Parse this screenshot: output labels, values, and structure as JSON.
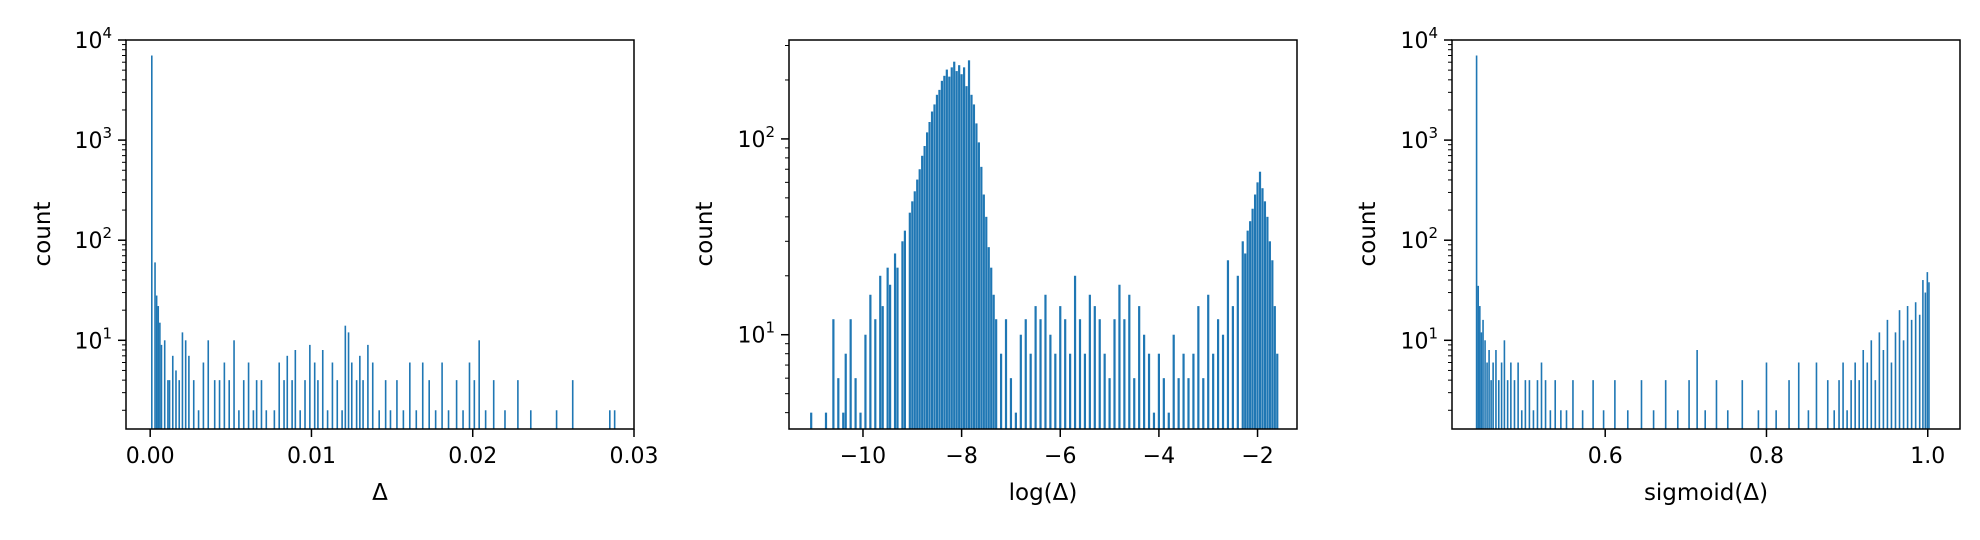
{
  "chart_data": [
    {
      "type": "bar",
      "xlabel": "Δ",
      "ylabel": "count",
      "y_scale": "log",
      "xlim": [
        -0.0015,
        0.03
      ],
      "ylim": [
        1.3,
        10000
      ],
      "xticks": [
        0.0,
        0.01,
        0.02,
        0.03
      ],
      "xtick_labels": [
        "0.00",
        "0.01",
        "0.02",
        "0.03"
      ],
      "yticks": [
        10,
        100,
        1000,
        10000
      ],
      "ytick_labels": [
        {
          "base": "10",
          "exp": "1"
        },
        {
          "base": "10",
          "exp": "2"
        },
        {
          "base": "10",
          "exp": "3"
        },
        {
          "base": "10",
          "exp": "4"
        }
      ],
      "grid": false,
      "bar_color": "#1f77b4",
      "bins": [
        [
          0.0001,
          7000
        ],
        [
          0.0003,
          60
        ],
        [
          0.0004,
          28
        ],
        [
          0.0005,
          22
        ],
        [
          0.0006,
          15
        ],
        [
          0.0007,
          9
        ],
        [
          0.0009,
          10
        ],
        [
          0.0011,
          4
        ],
        [
          0.0012,
          4
        ],
        [
          0.0014,
          7
        ],
        [
          0.0016,
          5
        ],
        [
          0.0018,
          4
        ],
        [
          0.002,
          12
        ],
        [
          0.0022,
          10
        ],
        [
          0.0024,
          7
        ],
        [
          0.0027,
          4
        ],
        [
          0.003,
          2
        ],
        [
          0.0033,
          6
        ],
        [
          0.0036,
          10
        ],
        [
          0.004,
          4
        ],
        [
          0.0043,
          4
        ],
        [
          0.0046,
          6
        ],
        [
          0.0049,
          4
        ],
        [
          0.0052,
          10
        ],
        [
          0.0055,
          2
        ],
        [
          0.0058,
          4
        ],
        [
          0.0061,
          6
        ],
        [
          0.0064,
          2
        ],
        [
          0.0066,
          4
        ],
        [
          0.0069,
          4
        ],
        [
          0.0072,
          2
        ],
        [
          0.0077,
          2
        ],
        [
          0.008,
          6
        ],
        [
          0.0083,
          4
        ],
        [
          0.0085,
          7
        ],
        [
          0.0088,
          4
        ],
        [
          0.009,
          8
        ],
        [
          0.0093,
          2
        ],
        [
          0.0096,
          4
        ],
        [
          0.0099,
          9
        ],
        [
          0.0102,
          6
        ],
        [
          0.0104,
          4
        ],
        [
          0.0107,
          8
        ],
        [
          0.011,
          2
        ],
        [
          0.0113,
          6
        ],
        [
          0.0116,
          4
        ],
        [
          0.0119,
          2
        ],
        [
          0.0121,
          14
        ],
        [
          0.0123,
          12
        ],
        [
          0.0125,
          6
        ],
        [
          0.0128,
          4
        ],
        [
          0.013,
          7
        ],
        [
          0.0132,
          4
        ],
        [
          0.0135,
          9
        ],
        [
          0.0138,
          6
        ],
        [
          0.0142,
          2
        ],
        [
          0.0146,
          4
        ],
        [
          0.0149,
          2
        ],
        [
          0.0153,
          4
        ],
        [
          0.0157,
          2
        ],
        [
          0.0161,
          6
        ],
        [
          0.0165,
          2
        ],
        [
          0.0169,
          6
        ],
        [
          0.0173,
          4
        ],
        [
          0.0177,
          2
        ],
        [
          0.0181,
          6
        ],
        [
          0.0185,
          2
        ],
        [
          0.019,
          4
        ],
        [
          0.0194,
          2
        ],
        [
          0.0198,
          6
        ],
        [
          0.0201,
          4
        ],
        [
          0.0204,
          10
        ],
        [
          0.0208,
          2
        ],
        [
          0.0213,
          4
        ],
        [
          0.022,
          2
        ],
        [
          0.0228,
          4
        ],
        [
          0.0236,
          2
        ],
        [
          0.0252,
          2
        ],
        [
          0.0262,
          4
        ],
        [
          0.0285,
          2
        ],
        [
          0.0288,
          2
        ]
      ]
    },
    {
      "type": "bar",
      "xlabel": "log(Δ)",
      "ylabel": "count",
      "y_scale": "log",
      "xlim": [
        -11.5,
        -1.2
      ],
      "ylim": [
        3.3,
        320
      ],
      "xticks": [
        -10,
        -8,
        -6,
        -4,
        -2
      ],
      "xtick_labels": [
        "−10",
        "−8",
        "−6",
        "−4",
        "−2"
      ],
      "yticks": [
        10,
        100
      ],
      "ytick_labels": [
        {
          "base": "10",
          "exp": "1"
        },
        {
          "base": "10",
          "exp": "2"
        }
      ],
      "grid": false,
      "bar_color": "#1f77b4",
      "bins": [
        [
          -11.05,
          4
        ],
        [
          -10.75,
          4
        ],
        [
          -10.6,
          12
        ],
        [
          -10.5,
          6
        ],
        [
          -10.4,
          4
        ],
        [
          -10.35,
          8
        ],
        [
          -10.25,
          12
        ],
        [
          -10.15,
          6
        ],
        [
          -10.05,
          4
        ],
        [
          -9.95,
          10
        ],
        [
          -9.85,
          16
        ],
        [
          -9.75,
          12
        ],
        [
          -9.65,
          20
        ],
        [
          -9.6,
          14
        ],
        [
          -9.5,
          22
        ],
        [
          -9.45,
          18
        ],
        [
          -9.35,
          26
        ],
        [
          -9.3,
          22
        ],
        [
          -9.2,
          30
        ],
        [
          -9.15,
          34
        ],
        [
          -9.05,
          42
        ],
        [
          -9.0,
          48
        ],
        [
          -8.95,
          54
        ],
        [
          -8.9,
          62
        ],
        [
          -8.85,
          70
        ],
        [
          -8.8,
          82
        ],
        [
          -8.75,
          92
        ],
        [
          -8.7,
          108
        ],
        [
          -8.65,
          122
        ],
        [
          -8.6,
          138
        ],
        [
          -8.55,
          150
        ],
        [
          -8.5,
          168
        ],
        [
          -8.45,
          178
        ],
        [
          -8.4,
          198
        ],
        [
          -8.35,
          210
        ],
        [
          -8.3,
          226
        ],
        [
          -8.25,
          208
        ],
        [
          -8.2,
          232
        ],
        [
          -8.15,
          248
        ],
        [
          -8.1,
          222
        ],
        [
          -8.05,
          238
        ],
        [
          -8.0,
          214
        ],
        [
          -7.95,
          232
        ],
        [
          -7.9,
          186
        ],
        [
          -7.85,
          252
        ],
        [
          -7.8,
          168
        ],
        [
          -7.75,
          150
        ],
        [
          -7.7,
          120
        ],
        [
          -7.65,
          96
        ],
        [
          -7.6,
          72
        ],
        [
          -7.55,
          52
        ],
        [
          -7.5,
          40
        ],
        [
          -7.45,
          28
        ],
        [
          -7.4,
          22
        ],
        [
          -7.35,
          16
        ],
        [
          -7.3,
          12
        ],
        [
          -7.2,
          8
        ],
        [
          -7.1,
          12
        ],
        [
          -7.0,
          6
        ],
        [
          -6.9,
          4
        ],
        [
          -6.8,
          10
        ],
        [
          -6.7,
          12
        ],
        [
          -6.6,
          8
        ],
        [
          -6.5,
          14
        ],
        [
          -6.4,
          12
        ],
        [
          -6.3,
          16
        ],
        [
          -6.2,
          10
        ],
        [
          -6.1,
          8
        ],
        [
          -6.0,
          14
        ],
        [
          -5.9,
          12
        ],
        [
          -5.8,
          8
        ],
        [
          -5.7,
          20
        ],
        [
          -5.6,
          12
        ],
        [
          -5.5,
          8
        ],
        [
          -5.4,
          16
        ],
        [
          -5.3,
          14
        ],
        [
          -5.2,
          12
        ],
        [
          -5.1,
          8
        ],
        [
          -5.0,
          6
        ],
        [
          -4.9,
          12
        ],
        [
          -4.8,
          18
        ],
        [
          -4.7,
          12
        ],
        [
          -4.6,
          16
        ],
        [
          -4.5,
          6
        ],
        [
          -4.4,
          14
        ],
        [
          -4.3,
          10
        ],
        [
          -4.2,
          8
        ],
        [
          -4.1,
          4
        ],
        [
          -4.0,
          8
        ],
        [
          -3.9,
          6
        ],
        [
          -3.8,
          4
        ],
        [
          -3.7,
          10
        ],
        [
          -3.6,
          6
        ],
        [
          -3.5,
          8
        ],
        [
          -3.4,
          6
        ],
        [
          -3.3,
          8
        ],
        [
          -3.2,
          14
        ],
        [
          -3.1,
          6
        ],
        [
          -3.0,
          16
        ],
        [
          -2.9,
          8
        ],
        [
          -2.8,
          12
        ],
        [
          -2.7,
          10
        ],
        [
          -2.6,
          24
        ],
        [
          -2.5,
          14
        ],
        [
          -2.4,
          20
        ],
        [
          -2.3,
          30
        ],
        [
          -2.25,
          26
        ],
        [
          -2.2,
          34
        ],
        [
          -2.15,
          38
        ],
        [
          -2.1,
          44
        ],
        [
          -2.05,
          52
        ],
        [
          -2.0,
          60
        ],
        [
          -1.95,
          68
        ],
        [
          -1.9,
          56
        ],
        [
          -1.85,
          48
        ],
        [
          -1.8,
          40
        ],
        [
          -1.75,
          30
        ],
        [
          -1.7,
          24
        ],
        [
          -1.65,
          14
        ],
        [
          -1.6,
          8
        ]
      ]
    },
    {
      "type": "bar",
      "xlabel": "sigmoid(Δ)",
      "ylabel": "count",
      "y_scale": "log",
      "xlim": [
        0.41,
        1.04
      ],
      "ylim": [
        1.3,
        10000
      ],
      "xticks": [
        0.6,
        0.8,
        1.0
      ],
      "xtick_labels": [
        "0.6",
        "0.8",
        "1.0"
      ],
      "yticks": [
        10,
        100,
        1000,
        10000
      ],
      "ytick_labels": [
        {
          "base": "10",
          "exp": "1"
        },
        {
          "base": "10",
          "exp": "2"
        },
        {
          "base": "10",
          "exp": "3"
        },
        {
          "base": "10",
          "exp": "4"
        }
      ],
      "grid": false,
      "bar_color": "#1f77b4",
      "bins": [
        [
          0.4405,
          7000
        ],
        [
          0.4425,
          35
        ],
        [
          0.4445,
          22
        ],
        [
          0.4465,
          12
        ],
        [
          0.4485,
          16
        ],
        [
          0.451,
          10
        ],
        [
          0.4535,
          6
        ],
        [
          0.456,
          8
        ],
        [
          0.4585,
          4
        ],
        [
          0.461,
          6
        ],
        [
          0.4645,
          8
        ],
        [
          0.468,
          4
        ],
        [
          0.4715,
          6
        ],
        [
          0.475,
          10
        ],
        [
          0.479,
          4
        ],
        [
          0.483,
          6
        ],
        [
          0.4875,
          4
        ],
        [
          0.492,
          6
        ],
        [
          0.4965,
          2
        ],
        [
          0.501,
          4
        ],
        [
          0.506,
          4
        ],
        [
          0.511,
          2
        ],
        [
          0.516,
          4
        ],
        [
          0.521,
          6
        ],
        [
          0.526,
          4
        ],
        [
          0.532,
          2
        ],
        [
          0.538,
          4
        ],
        [
          0.545,
          2
        ],
        [
          0.552,
          2
        ],
        [
          0.56,
          4
        ],
        [
          0.572,
          2
        ],
        [
          0.585,
          4
        ],
        [
          0.598,
          2
        ],
        [
          0.612,
          4
        ],
        [
          0.628,
          2
        ],
        [
          0.645,
          4
        ],
        [
          0.66,
          2
        ],
        [
          0.675,
          4
        ],
        [
          0.69,
          2
        ],
        [
          0.704,
          4
        ],
        [
          0.714,
          8
        ],
        [
          0.724,
          2
        ],
        [
          0.738,
          4
        ],
        [
          0.752,
          2
        ],
        [
          0.77,
          4
        ],
        [
          0.79,
          2
        ],
        [
          0.8,
          6
        ],
        [
          0.812,
          2
        ],
        [
          0.828,
          4
        ],
        [
          0.84,
          6
        ],
        [
          0.852,
          2
        ],
        [
          0.862,
          6
        ],
        [
          0.876,
          4
        ],
        [
          0.884,
          2
        ],
        [
          0.89,
          4
        ],
        [
          0.895,
          6
        ],
        [
          0.9,
          2
        ],
        [
          0.905,
          4
        ],
        [
          0.91,
          6
        ],
        [
          0.915,
          4
        ],
        [
          0.92,
          8
        ],
        [
          0.925,
          6
        ],
        [
          0.93,
          10
        ],
        [
          0.935,
          4
        ],
        [
          0.94,
          12
        ],
        [
          0.945,
          8
        ],
        [
          0.95,
          16
        ],
        [
          0.955,
          6
        ],
        [
          0.96,
          12
        ],
        [
          0.965,
          20
        ],
        [
          0.97,
          10
        ],
        [
          0.975,
          22
        ],
        [
          0.98,
          16
        ],
        [
          0.985,
          24
        ],
        [
          0.99,
          18
        ],
        [
          0.994,
          40
        ],
        [
          0.997,
          30
        ],
        [
          0.9995,
          48
        ],
        [
          1.0015,
          38
        ]
      ]
    }
  ]
}
